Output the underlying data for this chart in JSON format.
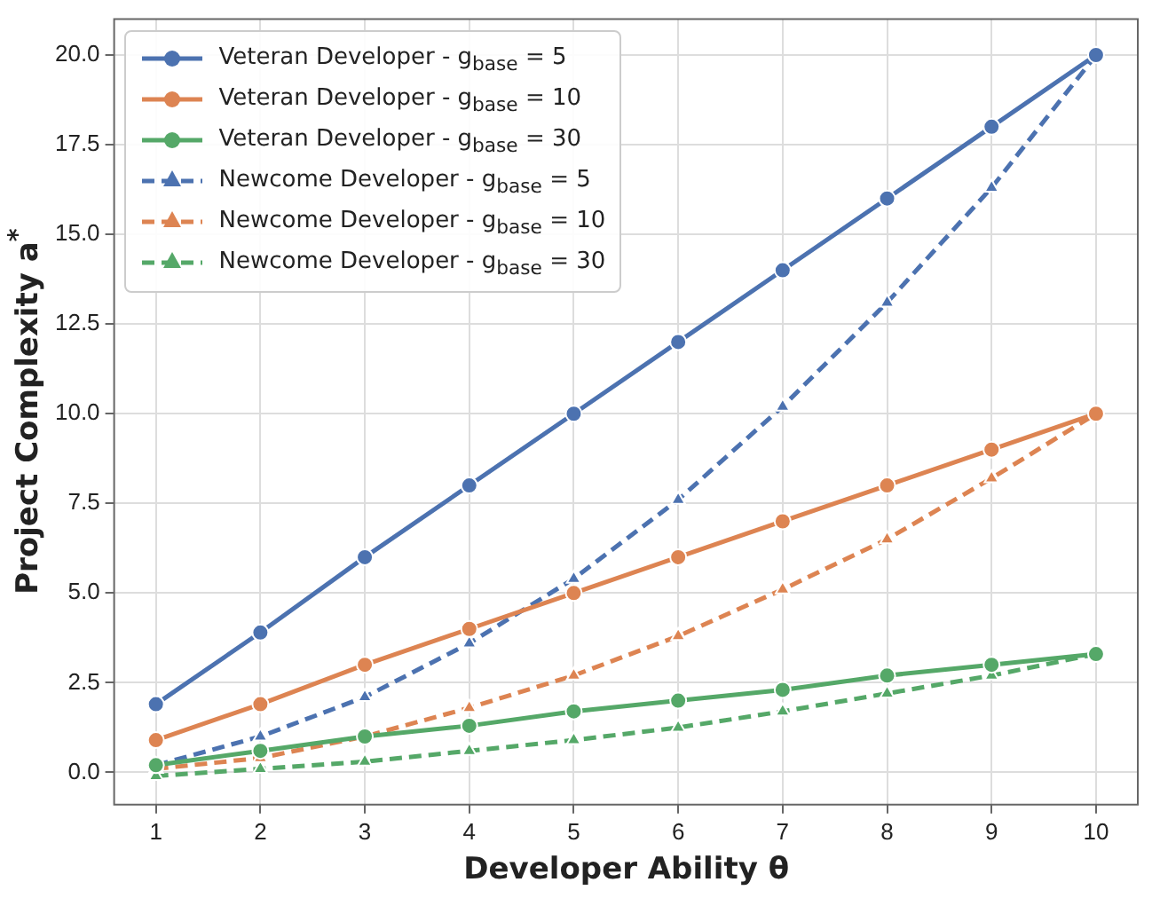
{
  "chart_data": {
    "type": "line",
    "xlabel": "Developer Ability θ",
    "ylabel": "Project Complexity a$^{*}$",
    "x": [
      1,
      2,
      3,
      4,
      5,
      6,
      7,
      8,
      9,
      10
    ],
    "xlim": [
      0.6,
      10.4
    ],
    "xticks": [
      1,
      2,
      3,
      4,
      5,
      6,
      7,
      8,
      9,
      10
    ],
    "ylim": [
      -0.9,
      21
    ],
    "yticks": [
      {
        "value": 0,
        "label": "0.0"
      },
      {
        "value": 2.5,
        "label": "2.5"
      },
      {
        "value": 5,
        "label": "5.0"
      },
      {
        "value": 7.5,
        "label": "7.5"
      },
      {
        "value": 10,
        "label": "10.0"
      },
      {
        "value": 12.5,
        "label": "12.5"
      },
      {
        "value": 15,
        "label": "15.0"
      },
      {
        "value": 17.5,
        "label": "17.5"
      },
      {
        "value": 20,
        "label": "20.0"
      }
    ],
    "grid": true,
    "legend": "top left",
    "series": [
      {
        "name": "Veteran Developer - g$_{base}$ = 5",
        "color": "#4c72b0",
        "marker": "circle",
        "line_style": "solid",
        "values": [
          1.9,
          3.9,
          6.0,
          8.0,
          10.0,
          12.0,
          14.0,
          16.0,
          18.0,
          20.0
        ]
      },
      {
        "name": "Veteran Developer - g$_{base}$ = 10",
        "color": "#dd8452",
        "marker": "circle",
        "line_style": "solid",
        "values": [
          0.9,
          1.9,
          3.0,
          4.0,
          5.0,
          6.0,
          7.0,
          8.0,
          9.0,
          10.0
        ]
      },
      {
        "name": "Veteran Developer - g$_{base}$ = 30",
        "color": "#55a868",
        "marker": "circle",
        "line_style": "solid",
        "values": [
          0.2,
          0.6,
          1.0,
          1.3,
          1.7,
          2.0,
          2.3,
          2.7,
          3.0,
          3.3
        ]
      },
      {
        "name": "Newcome Developer - g$_{base}$ = 5",
        "color": "#4c72b0",
        "marker": "triangle",
        "line_style": "dashed",
        "values": [
          0.2,
          1.0,
          2.1,
          3.6,
          5.4,
          7.6,
          10.2,
          13.1,
          16.3,
          20.0
        ]
      },
      {
        "name": "Newcome Developer - g$_{base}$ = 10",
        "color": "#dd8452",
        "marker": "triangle",
        "line_style": "dashed",
        "values": [
          0.1,
          0.4,
          1.0,
          1.8,
          2.7,
          3.8,
          5.1,
          6.5,
          8.2,
          10.0
        ]
      },
      {
        "name": "Newcome Developer - g$_{base}$ = 30",
        "color": "#55a868",
        "marker": "triangle",
        "line_style": "dashed",
        "values": [
          -0.1,
          0.1,
          0.3,
          0.6,
          0.9,
          1.25,
          1.7,
          2.2,
          2.7,
          3.3
        ]
      }
    ]
  }
}
